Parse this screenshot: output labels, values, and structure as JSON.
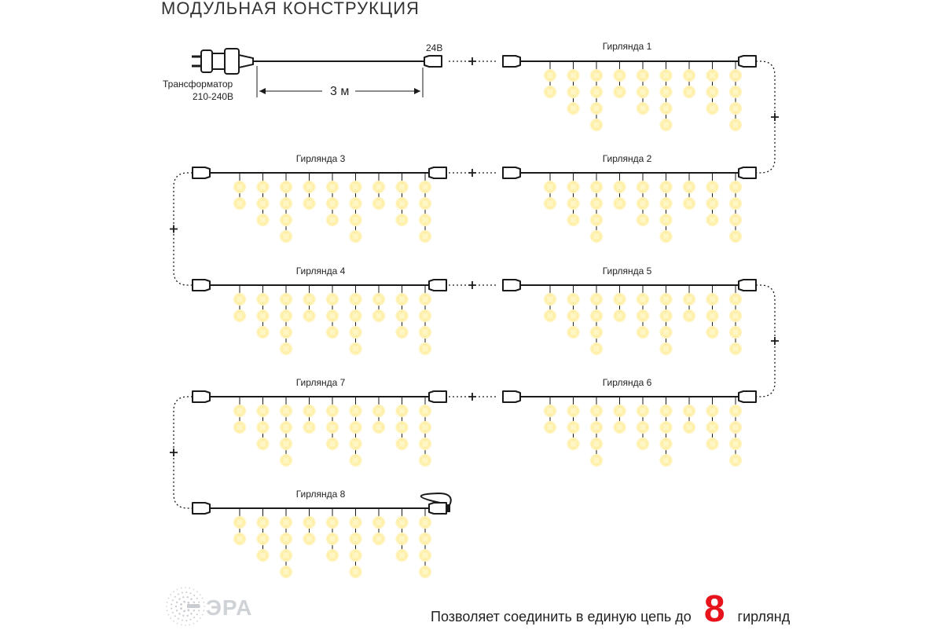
{
  "title": "МОДУЛЬНАЯ КОНСТРУКЦИЯ",
  "transformer": {
    "line1": "Трансформатор",
    "line2": "210-240В"
  },
  "voltage_label": "24В",
  "cable_length_label": "3 м",
  "plus_sign": "+",
  "garlands": [
    {
      "name": "Гирлянда 1"
    },
    {
      "name": "Гирлянда 2"
    },
    {
      "name": "Гирлянда 3"
    },
    {
      "name": "Гирлянда 4"
    },
    {
      "name": "Гирлянда 5"
    },
    {
      "name": "Гирлянда 6"
    },
    {
      "name": "Гирлянда 7"
    },
    {
      "name": "Гирлянда 8"
    }
  ],
  "footer": {
    "before": "Позволяет соединить в единую цепь до",
    "number": "8",
    "after": "гирлянд"
  },
  "logo": {
    "text": "ЭРА"
  },
  "colors": {
    "accent_red": "#e8141c",
    "led_glow": "#ffe98a",
    "wire": "#1a1a1a",
    "logo_gray": "#cfd2d6"
  }
}
